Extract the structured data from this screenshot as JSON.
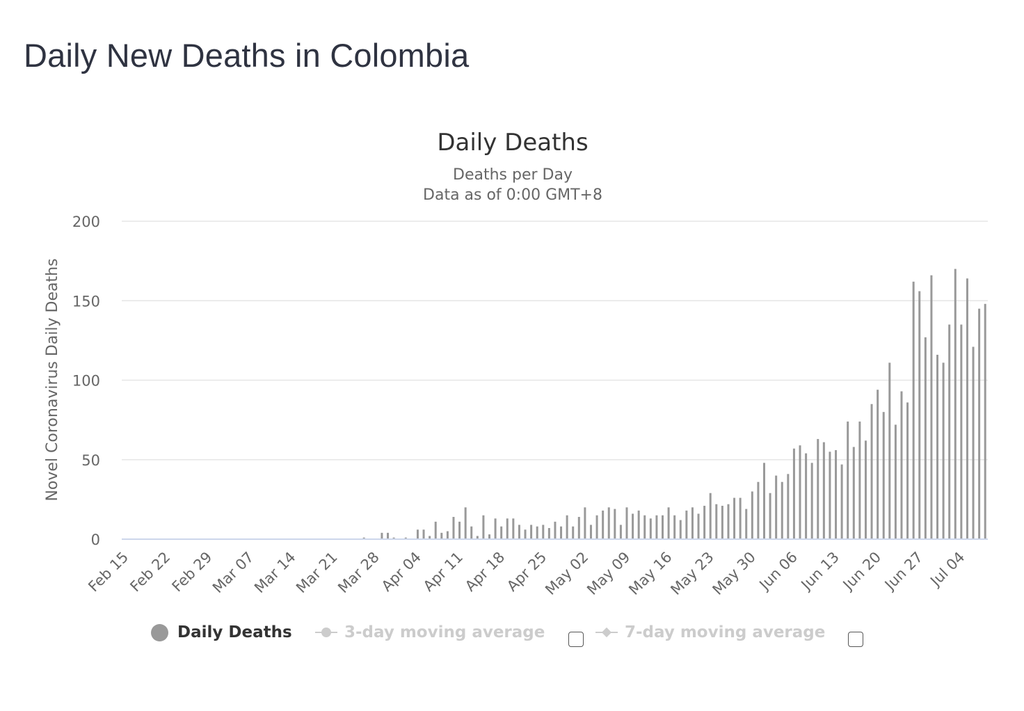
{
  "page": {
    "title": "Daily New Deaths in Colombia"
  },
  "chart_data": {
    "type": "bar",
    "title": "Daily Deaths",
    "subtitle_lines": [
      "Deaths per Day",
      "Data as of 0:00 GMT+8"
    ],
    "ylabel": "Novel Coronavirus Daily Deaths",
    "ylim": [
      0,
      200
    ],
    "yticks": [
      0,
      50,
      100,
      150,
      200
    ],
    "grid": true,
    "bar_color": "#999999",
    "grid_color": "#e6e6e6",
    "axis_color": "#ccd6eb",
    "start_date": "Feb 15",
    "xtick_labels": [
      "Feb 15",
      "Feb 22",
      "Feb 29",
      "Mar 07",
      "Mar 14",
      "Mar 21",
      "Mar 28",
      "Apr 04",
      "Apr 11",
      "Apr 18",
      "Apr 25",
      "May 02",
      "May 09",
      "May 16",
      "May 23",
      "May 30",
      "Jun 06",
      "Jun 13",
      "Jun 20",
      "Jun 27",
      "Jul 04"
    ],
    "series": [
      {
        "name": "Daily Deaths",
        "values": [
          0,
          0,
          0,
          0,
          0,
          0,
          0,
          0,
          0,
          0,
          0,
          0,
          0,
          0,
          0,
          0,
          0,
          0,
          0,
          0,
          0,
          0,
          0,
          0,
          0,
          0,
          0,
          0,
          0,
          0,
          0,
          0,
          0,
          0,
          0,
          0,
          0,
          0,
          0,
          0,
          1,
          0,
          0,
          4,
          4,
          1,
          0,
          1,
          0,
          6,
          6,
          2,
          11,
          4,
          5,
          14,
          11,
          20,
          8,
          2,
          15,
          3,
          13,
          8,
          13,
          13,
          9,
          6,
          9,
          8,
          9,
          7,
          11,
          8,
          15,
          8,
          14,
          20,
          9,
          15,
          18,
          20,
          19,
          9,
          20,
          16,
          18,
          15,
          13,
          15,
          15,
          20,
          15,
          12,
          18,
          20,
          16,
          21,
          29,
          22,
          21,
          22,
          26,
          26,
          19,
          30,
          36,
          48,
          29,
          40,
          36,
          41,
          57,
          59,
          54,
          48,
          63,
          61,
          55,
          56,
          47,
          74,
          58,
          74,
          62,
          85,
          94,
          80,
          111,
          72,
          93,
          86,
          162,
          156,
          127,
          166,
          116,
          111,
          135,
          170,
          135,
          164,
          121,
          145,
          148
        ]
      }
    ],
    "legend": [
      {
        "label": "Daily Deaths",
        "active": true
      },
      {
        "label": "3-day moving average",
        "active": false
      },
      {
        "label": "7-day moving average",
        "active": false
      }
    ]
  }
}
